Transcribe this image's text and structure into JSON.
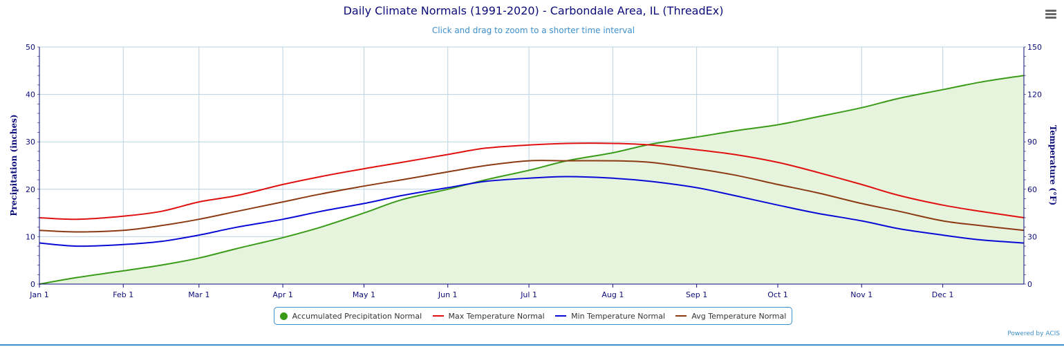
{
  "header": {
    "title": "Daily Climate Normals (1991-2020) - Carbondale Area, IL (ThreadEx)",
    "subtitle": "Click and drag to zoom to a shorter time interval"
  },
  "menu": {
    "icon": "hamburger-menu-icon"
  },
  "credits": {
    "label": "Powered by ACIS"
  },
  "colors": {
    "precip": "#3a9b18",
    "precip_fill": "#e6f3dd",
    "max": "#e01010",
    "min": "#0a0ad6",
    "avg": "#8b3a12",
    "grid": "#b8d3e0",
    "axis_text": "#0b0b7a"
  },
  "chart_data": {
    "type": "line",
    "title": "Daily Climate Normals (1991-2020) - Carbondale Area, IL (ThreadEx)",
    "subtitle": "Click and drag to zoom to a shorter time interval",
    "x_tick_labels": [
      "Jan 1",
      "Feb 1",
      "Mar 1",
      "Apr 1",
      "May 1",
      "Jun 1",
      "Jul 1",
      "Aug 1",
      "Sep 1",
      "Oct 1",
      "Nov 1",
      "Dec 1"
    ],
    "x": [
      "Jan 1",
      "Jan 15",
      "Feb 1",
      "Feb 15",
      "Mar 1",
      "Mar 15",
      "Apr 1",
      "Apr 15",
      "May 1",
      "May 15",
      "Jun 1",
      "Jun 15",
      "Jul 1",
      "Jul 15",
      "Aug 1",
      "Aug 15",
      "Sep 1",
      "Sep 15",
      "Oct 1",
      "Oct 15",
      "Nov 1",
      "Nov 15",
      "Dec 1",
      "Dec 15",
      "Dec 31"
    ],
    "xrange": [
      "Jan 1",
      "Dec 31"
    ],
    "y_left": {
      "label": "Precipitation (inches)",
      "range": [
        0,
        50
      ],
      "ticks": [
        0,
        10,
        20,
        30,
        40,
        50
      ]
    },
    "y_right": {
      "label": "Temperature (°F)",
      "range": [
        0,
        150
      ],
      "ticks": [
        0,
        30,
        60,
        90,
        120,
        150
      ]
    },
    "grid": true,
    "legend_position": "bottom-center",
    "series": [
      {
        "name": "Accumulated Precipitation Normal",
        "axis": "left",
        "type": "area",
        "values": [
          0.0,
          1.4,
          2.8,
          4.0,
          5.5,
          7.5,
          9.8,
          12.0,
          15.0,
          17.8,
          20.0,
          22.0,
          24.0,
          26.0,
          27.7,
          29.5,
          31.0,
          32.3,
          33.6,
          35.2,
          37.2,
          39.2,
          41.0,
          42.6,
          44.0
        ]
      },
      {
        "name": "Max Temperature Normal",
        "axis": "right",
        "type": "line",
        "values": [
          42,
          41,
          43,
          46,
          52,
          56,
          63,
          68,
          73,
          77,
          82,
          86,
          88,
          89,
          89,
          88,
          85,
          82,
          77,
          71,
          63,
          56,
          50,
          46,
          42
        ]
      },
      {
        "name": "Min Temperature Normal",
        "axis": "right",
        "type": "line",
        "values": [
          26,
          24,
          25,
          27,
          31,
          36,
          41,
          46,
          51,
          56,
          61,
          65,
          67,
          68,
          67,
          65,
          61,
          56,
          50,
          45,
          40,
          35,
          31,
          28,
          26
        ]
      },
      {
        "name": "Avg Temperature Normal",
        "axis": "right",
        "type": "line",
        "values": [
          34,
          33,
          34,
          37,
          41,
          46,
          52,
          57,
          62,
          66,
          71,
          75,
          78,
          78,
          78,
          77,
          73,
          69,
          63,
          58,
          51,
          46,
          40,
          37,
          34
        ]
      }
    ]
  }
}
